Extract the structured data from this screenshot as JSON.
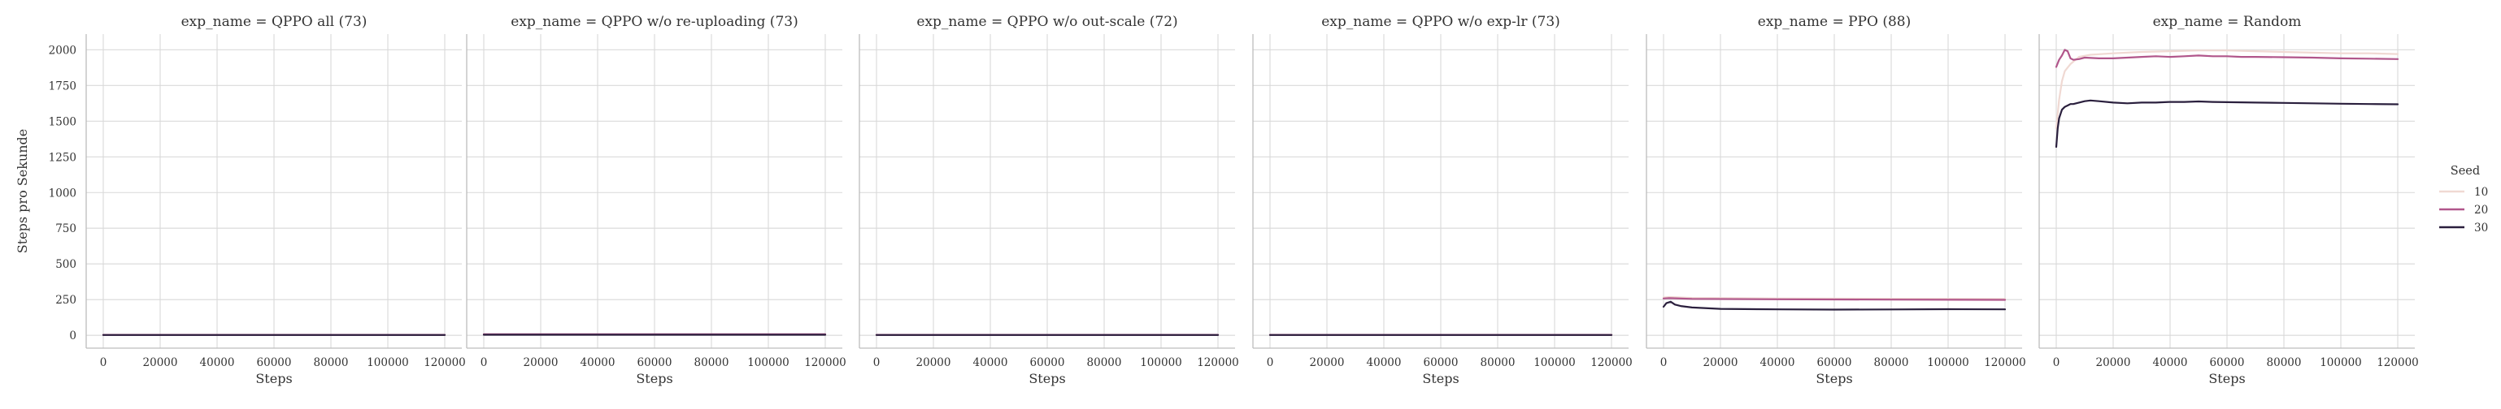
{
  "chart_data": {
    "type": "line",
    "ylabel": "Steps pro Sekunde",
    "xlabel": "Steps",
    "xlim": [
      -6000,
      126000
    ],
    "ylim": [
      -90,
      2110
    ],
    "x_ticks": [
      0,
      20000,
      40000,
      60000,
      80000,
      100000,
      120000
    ],
    "y_ticks": [
      0,
      250,
      500,
      750,
      1000,
      1250,
      1500,
      1750,
      2000
    ],
    "grid": true,
    "legend": {
      "title": "Seed",
      "placement": "right",
      "entries": [
        {
          "label": "10",
          "color": "#f0d9d3"
        },
        {
          "label": "20",
          "color": "#b1568b"
        },
        {
          "label": "30",
          "color": "#2a1f3d"
        }
      ]
    },
    "panels": [
      {
        "title": "exp_name = QPPO all (73)",
        "series": [
          {
            "seed": "10",
            "x": [
              0,
              120000
            ],
            "y": [
              2,
              2
            ]
          },
          {
            "seed": "20",
            "x": [
              0,
              120000
            ],
            "y": [
              3,
              3
            ]
          },
          {
            "seed": "30",
            "x": [
              0,
              120000
            ],
            "y": [
              2,
              2
            ]
          }
        ]
      },
      {
        "title": "exp_name = QPPO w/o re-uploading (73)",
        "series": [
          {
            "seed": "10",
            "x": [
              0,
              120000
            ],
            "y": [
              4,
              4
            ]
          },
          {
            "seed": "20",
            "x": [
              0,
              120000
            ],
            "y": [
              7,
              7
            ]
          },
          {
            "seed": "30",
            "x": [
              0,
              120000
            ],
            "y": [
              4,
              4
            ]
          }
        ]
      },
      {
        "title": "exp_name = QPPO w/o out-scale (72)",
        "series": [
          {
            "seed": "10",
            "x": [
              0,
              120000
            ],
            "y": [
              2,
              2
            ]
          },
          {
            "seed": "20",
            "x": [
              0,
              120000
            ],
            "y": [
              3,
              3
            ]
          },
          {
            "seed": "30",
            "x": [
              0,
              120000
            ],
            "y": [
              2,
              2
            ]
          }
        ]
      },
      {
        "title": "exp_name = QPPO w/o exp-lr (73)",
        "series": [
          {
            "seed": "10",
            "x": [
              0,
              120000
            ],
            "y": [
              2,
              2
            ]
          },
          {
            "seed": "20",
            "x": [
              0,
              120000
            ],
            "y": [
              3,
              3
            ]
          },
          {
            "seed": "30",
            "x": [
              0,
              120000
            ],
            "y": [
              2,
              2
            ]
          }
        ]
      },
      {
        "title": "exp_name = PPO (88)",
        "series": [
          {
            "seed": "10",
            "x": [
              0,
              2000,
              10000,
              40000,
              80000,
              120000
            ],
            "y": [
              265,
              268,
              262,
              258,
              256,
              255
            ]
          },
          {
            "seed": "20",
            "x": [
              0,
              2000,
              10000,
              40000,
              80000,
              120000
            ],
            "y": [
              258,
              260,
              255,
              252,
              250,
              248
            ]
          },
          {
            "seed": "30",
            "x": [
              0,
              1000,
              2500,
              4000,
              6000,
              10000,
              20000,
              40000,
              60000,
              80000,
              100000,
              120000
            ],
            "y": [
              200,
              225,
              235,
              215,
              205,
              195,
              185,
              182,
              180,
              181,
              183,
              182
            ]
          }
        ]
      },
      {
        "title": "exp_name = Random",
        "series": [
          {
            "seed": "10",
            "x": [
              0,
              1000,
              2000,
              3000,
              5000,
              8000,
              12000,
              20000,
              30000,
              40000,
              50000,
              60000,
              70000,
              80000,
              90000,
              100000,
              110000,
              120000
            ],
            "y": [
              1450,
              1650,
              1780,
              1850,
              1900,
              1950,
              1965,
              1975,
              1985,
              1990,
              1995,
              1995,
              1990,
              1985,
              1980,
              1975,
              1975,
              1970
            ]
          },
          {
            "seed": "20",
            "x": [
              0,
              1000,
              2000,
              3000,
              4000,
              5000,
              6000,
              8000,
              10000,
              15000,
              20000,
              25000,
              30000,
              35000,
              40000,
              45000,
              50000,
              55000,
              60000,
              65000,
              70000,
              80000,
              90000,
              100000,
              110000,
              120000
            ],
            "y": [
              1880,
              1930,
              1960,
              2000,
              1990,
              1940,
              1930,
              1935,
              1945,
              1940,
              1940,
              1945,
              1950,
              1955,
              1950,
              1955,
              1960,
              1955,
              1955,
              1950,
              1950,
              1948,
              1945,
              1940,
              1938,
              1935
            ]
          },
          {
            "seed": "30",
            "x": [
              0,
              500,
              1000,
              2000,
              3000,
              4000,
              5000,
              6000,
              7000,
              8000,
              10000,
              12000,
              15000,
              20000,
              25000,
              30000,
              35000,
              40000,
              45000,
              50000,
              55000,
              60000,
              70000,
              80000,
              90000,
              100000,
              110000,
              120000
            ],
            "y": [
              1320,
              1450,
              1520,
              1580,
              1600,
              1610,
              1620,
              1620,
              1625,
              1630,
              1640,
              1645,
              1640,
              1630,
              1625,
              1630,
              1630,
              1635,
              1635,
              1638,
              1635,
              1633,
              1630,
              1628,
              1625,
              1622,
              1620,
              1618
            ]
          }
        ]
      }
    ]
  }
}
